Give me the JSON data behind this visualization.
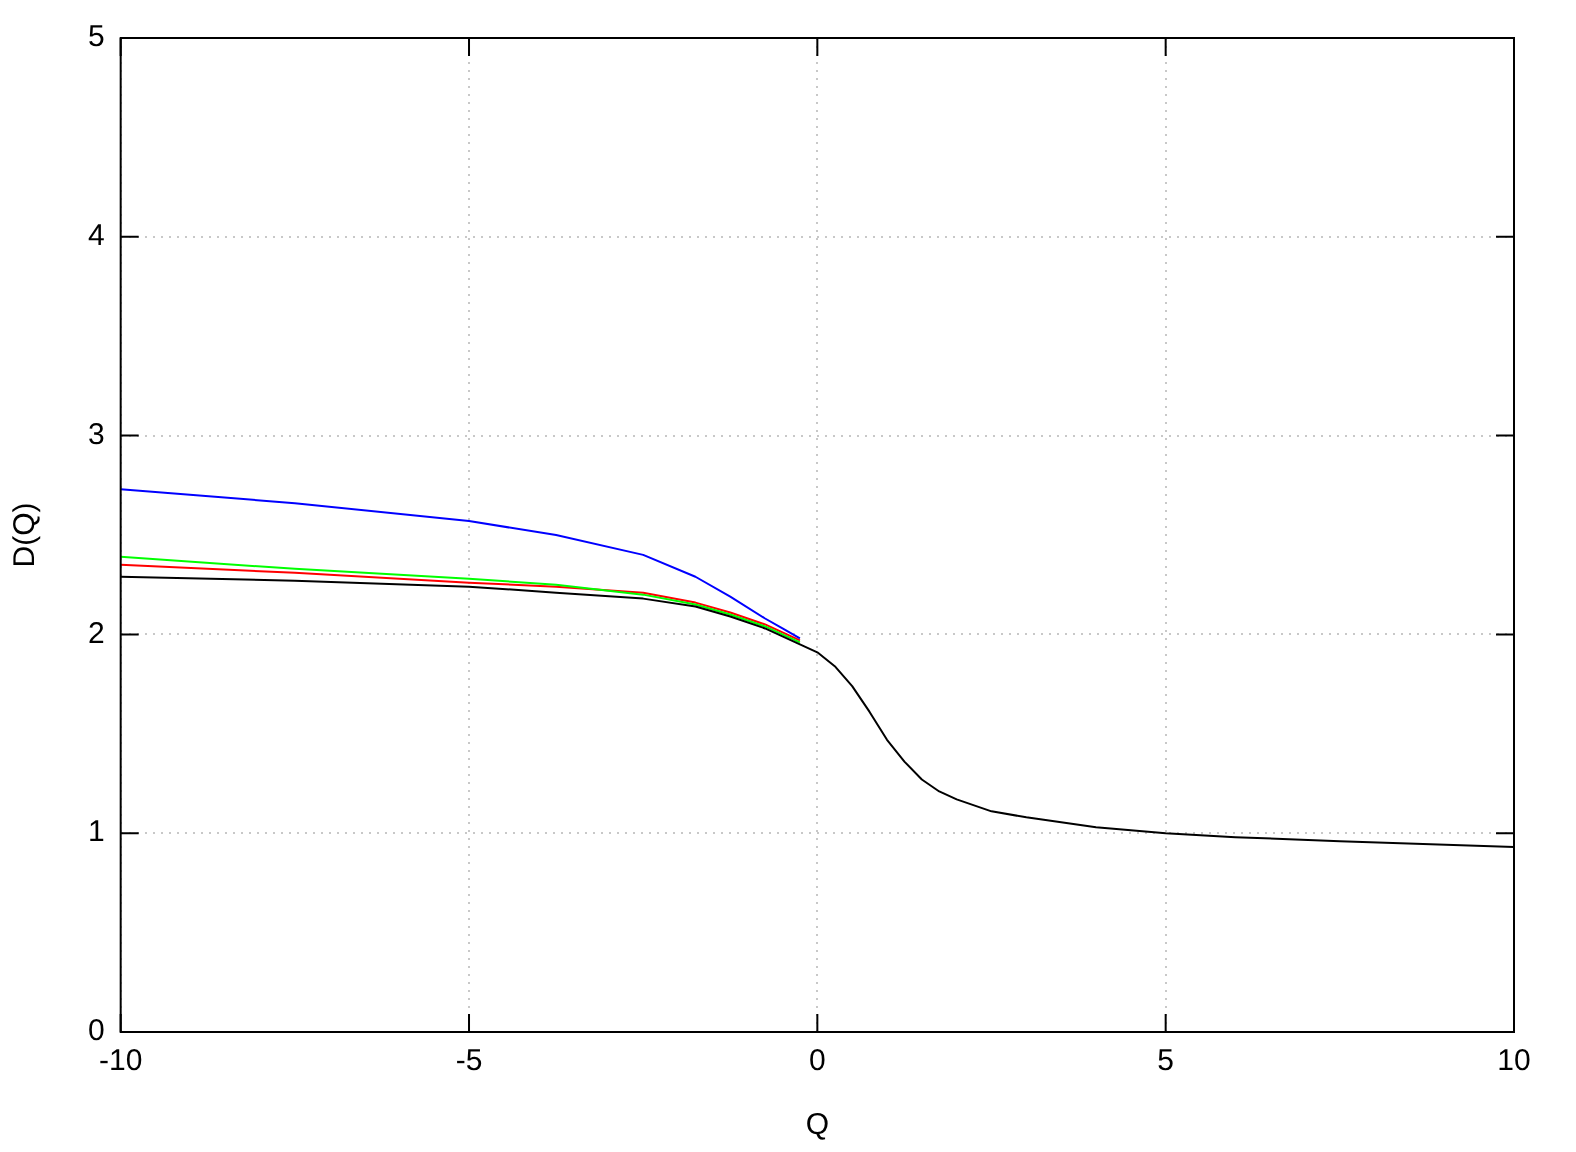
{
  "chart_data": {
    "type": "line",
    "xlabel": "Q",
    "ylabel": "D(Q)",
    "x": [
      -10,
      -7.5,
      -5,
      -3.75,
      -2.5,
      -1.75,
      -1.25,
      -0.75,
      -0.5,
      -0.25,
      0,
      0.25,
      0.5,
      0.75,
      1,
      1.25,
      1.5,
      1.75,
      2,
      2.5,
      3,
      4,
      5,
      6,
      7.5,
      10
    ],
    "series": [
      {
        "color": "#ff0000",
        "values": [
          2.35,
          2.31,
          2.26,
          2.24,
          2.21,
          2.16,
          2.11,
          2.05,
          2.01,
          1.97,
          null,
          null,
          null,
          null,
          null,
          null,
          null,
          null,
          null,
          null,
          null,
          null,
          null,
          null,
          null,
          null
        ]
      },
      {
        "color": "#00ff00",
        "values": [
          2.39,
          2.33,
          2.28,
          2.25,
          2.2,
          2.15,
          2.1,
          2.04,
          2.0,
          1.96,
          null,
          null,
          null,
          null,
          null,
          null,
          null,
          null,
          null,
          null,
          null,
          null,
          null,
          null,
          null,
          null
        ]
      },
      {
        "color": "#0000ff",
        "values": [
          2.73,
          2.66,
          2.57,
          2.5,
          2.4,
          2.29,
          2.19,
          2.08,
          2.03,
          1.98,
          null,
          null,
          null,
          null,
          null,
          null,
          null,
          null,
          null,
          null,
          null,
          null,
          null,
          null,
          null,
          null
        ]
      },
      {
        "color": "#000000",
        "values": [
          2.29,
          2.27,
          2.24,
          2.21,
          2.18,
          2.14,
          2.09,
          2.03,
          1.99,
          1.95,
          1.91,
          1.84,
          1.74,
          1.61,
          1.47,
          1.36,
          1.27,
          1.21,
          1.17,
          1.11,
          1.08,
          1.03,
          1.0,
          0.98,
          0.96,
          0.93
        ]
      }
    ],
    "xlim": [
      -10,
      10
    ],
    "xticks": [
      -10,
      -5,
      0,
      5,
      10
    ],
    "ylim": [
      0,
      5
    ],
    "yticks": [
      0,
      1,
      2,
      3,
      4,
      5
    ],
    "grid": true,
    "legend": false,
    "marker": "none",
    "line_style": "solid"
  }
}
